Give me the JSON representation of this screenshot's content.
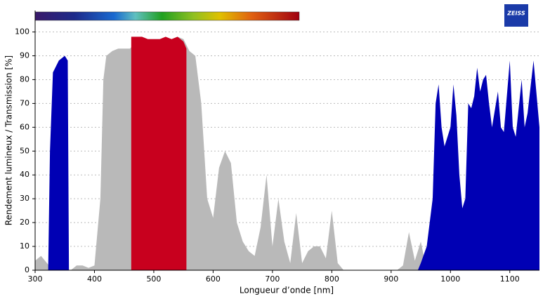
{
  "chart_data": {
    "type": "area",
    "logo": "ZEISS",
    "xlabel": "Longueur d’onde [nm]",
    "ylabel": "Rendement lumineux / Transmission [%]",
    "xlim": [
      300,
      1150
    ],
    "xticks": [
      300,
      400,
      500,
      600,
      700,
      800,
      900,
      1000,
      1100
    ],
    "ylim": [
      0,
      109
    ],
    "yticks": [
      0,
      10,
      20,
      30,
      40,
      50,
      60,
      70,
      80,
      90,
      100
    ],
    "grid": true,
    "series": [
      {
        "color": "#b9b9b9",
        "x": [
          300,
          310,
          320,
          330,
          360,
          370,
          380,
          390,
          400,
          410,
          415,
          420,
          430,
          440,
          450,
          460,
          470,
          480,
          490,
          500,
          510,
          520,
          530,
          540,
          550,
          560,
          570,
          580,
          590,
          600,
          610,
          620,
          630,
          640,
          650,
          660,
          670,
          680,
          690,
          700,
          710,
          720,
          730,
          740,
          750,
          760,
          770,
          780,
          790,
          800,
          810,
          820,
          910,
          920,
          930,
          940,
          950,
          960
        ],
        "values": [
          4,
          6,
          3,
          0,
          0,
          2,
          2,
          1,
          2,
          30,
          80,
          90,
          92,
          93,
          93,
          93,
          96,
          98,
          97,
          97,
          97,
          97,
          97,
          98,
          97,
          92,
          90,
          70,
          30,
          22,
          43,
          50,
          45,
          20,
          12,
          8,
          6,
          18,
          40,
          10,
          30,
          12,
          3,
          24,
          3,
          8,
          10,
          10,
          5,
          25,
          3,
          0,
          0,
          2,
          16,
          4,
          12,
          0
        ]
      },
      {
        "color": "#c8001e",
        "x": [
          462,
          470,
          480,
          490,
          500,
          510,
          520,
          530,
          540,
          550,
          555
        ],
        "values": [
          98,
          98,
          98,
          97,
          97,
          97,
          98,
          97,
          98,
          96,
          93
        ]
      },
      {
        "color": "#0000b4",
        "x": [
          322,
          325,
          330,
          340,
          350,
          355,
          357,
          600,
          945,
          950,
          960,
          970,
          975,
          980,
          985,
          990,
          1000,
          1005,
          1010,
          1015,
          1020,
          1025,
          1030,
          1035,
          1040,
          1045,
          1050,
          1055,
          1060,
          1065,
          1070,
          1080,
          1085,
          1090,
          1100,
          1105,
          1110,
          1120,
          1125,
          1130,
          1140,
          1150
        ],
        "values": [
          0,
          50,
          83,
          88,
          90,
          88,
          0,
          null,
          0,
          3,
          10,
          30,
          70,
          78,
          60,
          52,
          60,
          78,
          65,
          40,
          26,
          30,
          70,
          68,
          73,
          85,
          75,
          80,
          82,
          70,
          60,
          75,
          60,
          58,
          88,
          60,
          56,
          80,
          60,
          66,
          88,
          60
        ]
      }
    ]
  }
}
